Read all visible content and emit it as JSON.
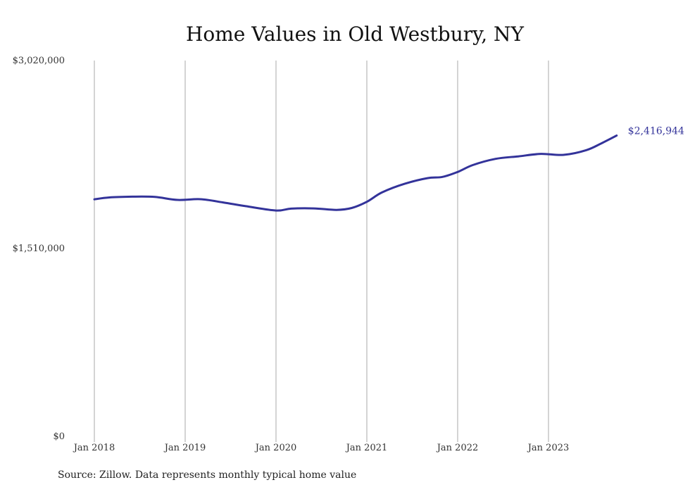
{
  "chart_data": {
    "type": "line",
    "title": "Home Values in Old Westbury, NY",
    "xlabel": "",
    "ylabel": "",
    "ylim": [
      0,
      3020000
    ],
    "xlim": [
      "2018-01",
      "2023-10"
    ],
    "grid": "vertical lines at year ticks",
    "legend": "none",
    "y_ticks": [
      0,
      1510000,
      3020000
    ],
    "y_tick_labels": [
      "$0",
      "$1,510,000",
      "$3,020,000"
    ],
    "x_ticks": [
      "2018-01",
      "2019-01",
      "2020-01",
      "2021-01",
      "2022-01",
      "2023-01"
    ],
    "x_tick_labels": [
      "Jan 2018",
      "Jan 2019",
      "Jan 2020",
      "Jan 2021",
      "Jan 2022",
      "Jan 2023"
    ],
    "end_label": "$2,416,944",
    "series": [
      {
        "color": "#33339a",
        "points": [
          [
            "2018-01",
            1905000
          ],
          [
            "2018-03",
            1920000
          ],
          [
            "2018-06",
            1926000
          ],
          [
            "2018-09",
            1924000
          ],
          [
            "2018-12",
            1900000
          ],
          [
            "2019-03",
            1906000
          ],
          [
            "2019-06",
            1880000
          ],
          [
            "2019-09",
            1850000
          ],
          [
            "2020-01",
            1815000
          ],
          [
            "2020-03",
            1830000
          ],
          [
            "2020-06",
            1832000
          ],
          [
            "2020-09",
            1820000
          ],
          [
            "2020-11",
            1835000
          ],
          [
            "2021-01",
            1885000
          ],
          [
            "2021-03",
            1960000
          ],
          [
            "2021-06",
            2030000
          ],
          [
            "2021-09",
            2075000
          ],
          [
            "2021-11",
            2085000
          ],
          [
            "2022-01",
            2125000
          ],
          [
            "2022-03",
            2180000
          ],
          [
            "2022-06",
            2230000
          ],
          [
            "2022-09",
            2250000
          ],
          [
            "2022-12",
            2270000
          ],
          [
            "2023-03",
            2262000
          ],
          [
            "2023-06",
            2300000
          ],
          [
            "2023-08",
            2355000
          ],
          [
            "2023-10",
            2416944
          ]
        ]
      }
    ]
  },
  "source_text": "Source: Zillow. Data represents monthly typical home value",
  "colors": {
    "line": "#33339a",
    "grid": "#aaaaaa"
  }
}
